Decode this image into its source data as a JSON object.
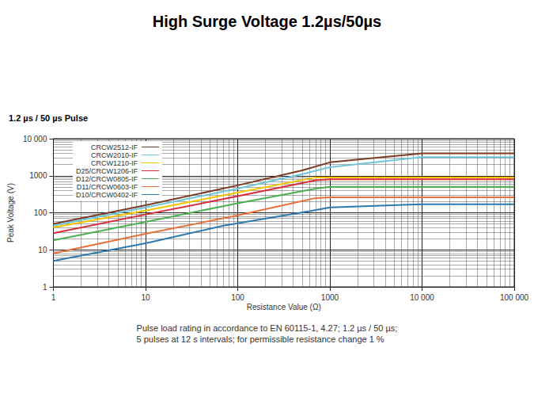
{
  "chart_data": {
    "type": "line",
    "title": "High Surge Voltage 1.2µs/50µs",
    "subtitle": "1.2 µs / 50 µs Pulse",
    "caption": [
      "Pulse load rating in accordance to EN 60115-1, 4.27; 1.2 µs / 50 µs;",
      "5 pulses at 12 s intervals; for permissible resistance change 1 %"
    ],
    "x_label": "Resistance Value (Ω)",
    "y_label": "Peak Voltage (V)",
    "log": true,
    "grid": true,
    "legend": "upper left",
    "xlim": [
      1,
      100000
    ],
    "ylim": [
      1,
      10000
    ],
    "xticks": [
      1,
      10,
      100,
      1000,
      {
        "value": 10000,
        "label": "10 000"
      },
      {
        "value": 100000,
        "label": "100 000"
      }
    ],
    "yticks": [
      1,
      10,
      100,
      1000,
      {
        "value": 10000,
        "label": "10 000"
      }
    ],
    "series": [
      {
        "name": "CRCW2512-IF",
        "color": "#7b3b24",
        "x": [
          1,
          10,
          100,
          500,
          1000,
          10000,
          100000
        ],
        "values": [
          50,
          160,
          550,
          1400,
          2300,
          4000,
          4000
        ]
      },
      {
        "name": "CRCW2010-IF",
        "color": "#6ec6d8",
        "x": [
          1,
          10,
          100,
          500,
          1000,
          10000,
          100000
        ],
        "values": [
          45,
          140,
          450,
          1100,
          1700,
          3200,
          3200
        ]
      },
      {
        "name": "CRCW1210-IF",
        "color": "#f5c400",
        "x": [
          1,
          10,
          100,
          700,
          1000,
          10000,
          100000
        ],
        "values": [
          40,
          115,
          350,
          900,
          900,
          900,
          900
        ]
      },
      {
        "name": "D25/CRCW1206-IF",
        "color": "#d92b3a",
        "x": [
          1,
          10,
          100,
          700,
          1000,
          10000,
          100000
        ],
        "values": [
          28,
          90,
          280,
          750,
          800,
          800,
          800
        ]
      },
      {
        "name": "D12/CRCW0805-IF",
        "color": "#4caf50",
        "x": [
          1,
          10,
          100,
          700,
          1000,
          10000,
          100000
        ],
        "values": [
          18,
          57,
          180,
          450,
          500,
          500,
          500
        ]
      },
      {
        "name": "D11/CRCW0603-IF",
        "color": "#e8703a",
        "x": [
          1,
          10,
          100,
          700,
          1000,
          10000,
          100000
        ],
        "values": [
          8,
          27,
          85,
          250,
          260,
          260,
          260
        ]
      },
      {
        "name": "D10/CRCW0402-IF",
        "color": "#2a7ab0",
        "x": [
          1,
          10,
          70,
          600,
          1000,
          10000,
          100000
        ],
        "values": [
          5,
          15,
          45,
          110,
          140,
          170,
          170
        ]
      }
    ]
  }
}
